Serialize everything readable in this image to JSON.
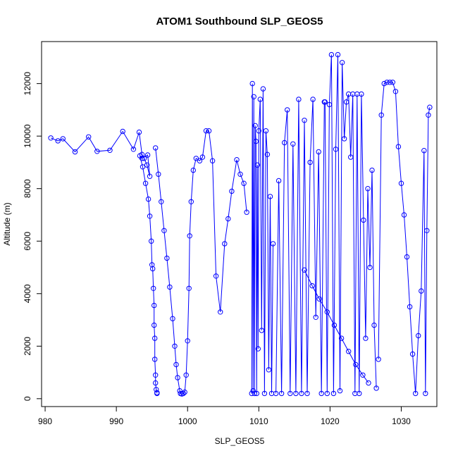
{
  "chart_data": {
    "type": "line",
    "title": "ATOM1 Southbound SLP_GEOS5",
    "xlabel": "SLP_GEOS5",
    "ylabel": "Altitude (m)",
    "xlim": [
      979.5,
      1035
    ],
    "ylim": [
      -300,
      13600
    ],
    "xticks": [
      980,
      990,
      1000,
      1010,
      1020,
      1030
    ],
    "yticks": [
      0,
      2000,
      4000,
      6000,
      8000,
      10000,
      12000
    ],
    "grid": false,
    "legend": "none",
    "markers": "open-circle",
    "color": "#0000ff",
    "series": [
      {
        "x": [
          980.8,
          981.8,
          982.5,
          984.2,
          986.1,
          987.3,
          989.1,
          990.9,
          992.4,
          993.2,
          993.6,
          993.9,
          994.3,
          994.7,
          994.4,
          993.6,
          993.3,
          993.7,
          994.1,
          994.5,
          994.7,
          994.9,
          995.0,
          995.1,
          995.2,
          995.3,
          995.3,
          995.4,
          995.4,
          995.5,
          995.5,
          995.6,
          995.7,
          995.7
        ],
        "y": [
          9930,
          9820,
          9900,
          9400,
          9970,
          9420,
          9460,
          10180,
          9500,
          10150,
          9300,
          9150,
          8900,
          8470,
          9280,
          9150,
          9250,
          8830,
          8200,
          7600,
          6950,
          6000,
          5100,
          4950,
          4200,
          3550,
          2800,
          2300,
          1500,
          900,
          600,
          350,
          230,
          200
        ]
      },
      {
        "x": [
          995.5,
          995.9,
          996.3,
          996.7,
          997.1,
          997.5,
          997.9,
          998.2,
          998.4,
          998.6,
          998.9,
          999.0,
          999.2,
          999.4,
          999.6,
          999.8,
          1000.0,
          1000.2,
          1000.3,
          1000.5,
          1000.8,
          1001.2,
          1001.7,
          1002.1,
          1002.6,
          1003.0,
          1003.5,
          1004.0,
          1004.6,
          1005.2,
          1005.7,
          1006.2,
          1006.9,
          1007.4,
          1007.9,
          1008.3
        ],
        "y": [
          9550,
          8550,
          7500,
          6400,
          5350,
          4250,
          3050,
          2000,
          1300,
          800,
          300,
          200,
          180,
          200,
          250,
          900,
          2200,
          4200,
          6200,
          7500,
          8700,
          9150,
          9060,
          9200,
          10200,
          10200,
          9060,
          4670,
          3300,
          5900,
          6850,
          7900,
          9100,
          8550,
          8200,
          7100
        ]
      },
      {
        "x": [
          1009.0,
          1009.1,
          1009.2,
          1009.3,
          1009.4,
          1009.5,
          1009.6,
          1009.7,
          1009.8,
          1009.9,
          1010.0,
          1010.2,
          1010.4,
          1010.6,
          1010.8,
          1011.0,
          1011.2,
          1011.4,
          1011.6,
          1011.8,
          1012.0
        ],
        "y": [
          200,
          12000,
          300,
          11500,
          200,
          10400,
          9800,
          200,
          8900,
          1900,
          10200,
          11400,
          2600,
          11800,
          200,
          10200,
          9300,
          1100,
          7700,
          200,
          5900
        ]
      },
      {
        "x": [
          1012.4,
          1012.8,
          1013.2,
          1013.6,
          1014.0,
          1014.4,
          1014.8,
          1015.2,
          1015.6,
          1016.0,
          1016.4,
          1016.8,
          1017.2,
          1017.6,
          1018.0,
          1018.4,
          1018.8,
          1019.2
        ],
        "y": [
          200,
          8300,
          200,
          9750,
          11000,
          200,
          9700,
          200,
          11400,
          200,
          10600,
          200,
          9000,
          11400,
          3100,
          9400,
          200,
          11300
        ]
      },
      {
        "x": [
          1019.3,
          1019.6,
          1019.9,
          1020.2,
          1020.5,
          1020.8,
          1021.1,
          1021.4,
          1021.7,
          1022.0,
          1022.3,
          1022.6,
          1022.9,
          1023.2,
          1023.5,
          1023.8,
          1024.1,
          1024.4,
          1024.7,
          1025.0,
          1025.3,
          1025.6,
          1025.9,
          1026.2,
          1026.5
        ],
        "y": [
          11300,
          200,
          11200,
          13100,
          200,
          9500,
          13100,
          300,
          12800,
          9900,
          11300,
          11600,
          9200,
          11600,
          200,
          11600,
          200,
          11600,
          6800,
          2300,
          8000,
          5000,
          8700,
          2800,
          400
        ]
      },
      {
        "x": [
          1026.8,
          1027.2,
          1027.6,
          1028.0,
          1028.4,
          1028.8,
          1029.2,
          1029.6,
          1030.0,
          1030.4,
          1030.8,
          1031.2,
          1031.6,
          1032.0,
          1032.4,
          1032.8,
          1033.2,
          1033.4,
          1033.6,
          1033.8,
          1034.0
        ],
        "y": [
          1500,
          10800,
          12000,
          12050,
          12050,
          12050,
          11700,
          9600,
          8200,
          7000,
          5400,
          3500,
          1700,
          200,
          2400,
          4100,
          9450,
          200,
          6400,
          10800,
          11100
        ]
      },
      {
        "x": [
          1016.4,
          1017.5,
          1018.5,
          1019.6,
          1020.6,
          1021.6,
          1022.6,
          1023.6,
          1024.6,
          1025.4
        ],
        "y": [
          4900,
          4300,
          3800,
          3300,
          2800,
          2300,
          1800,
          1300,
          900,
          600
        ]
      }
    ]
  }
}
